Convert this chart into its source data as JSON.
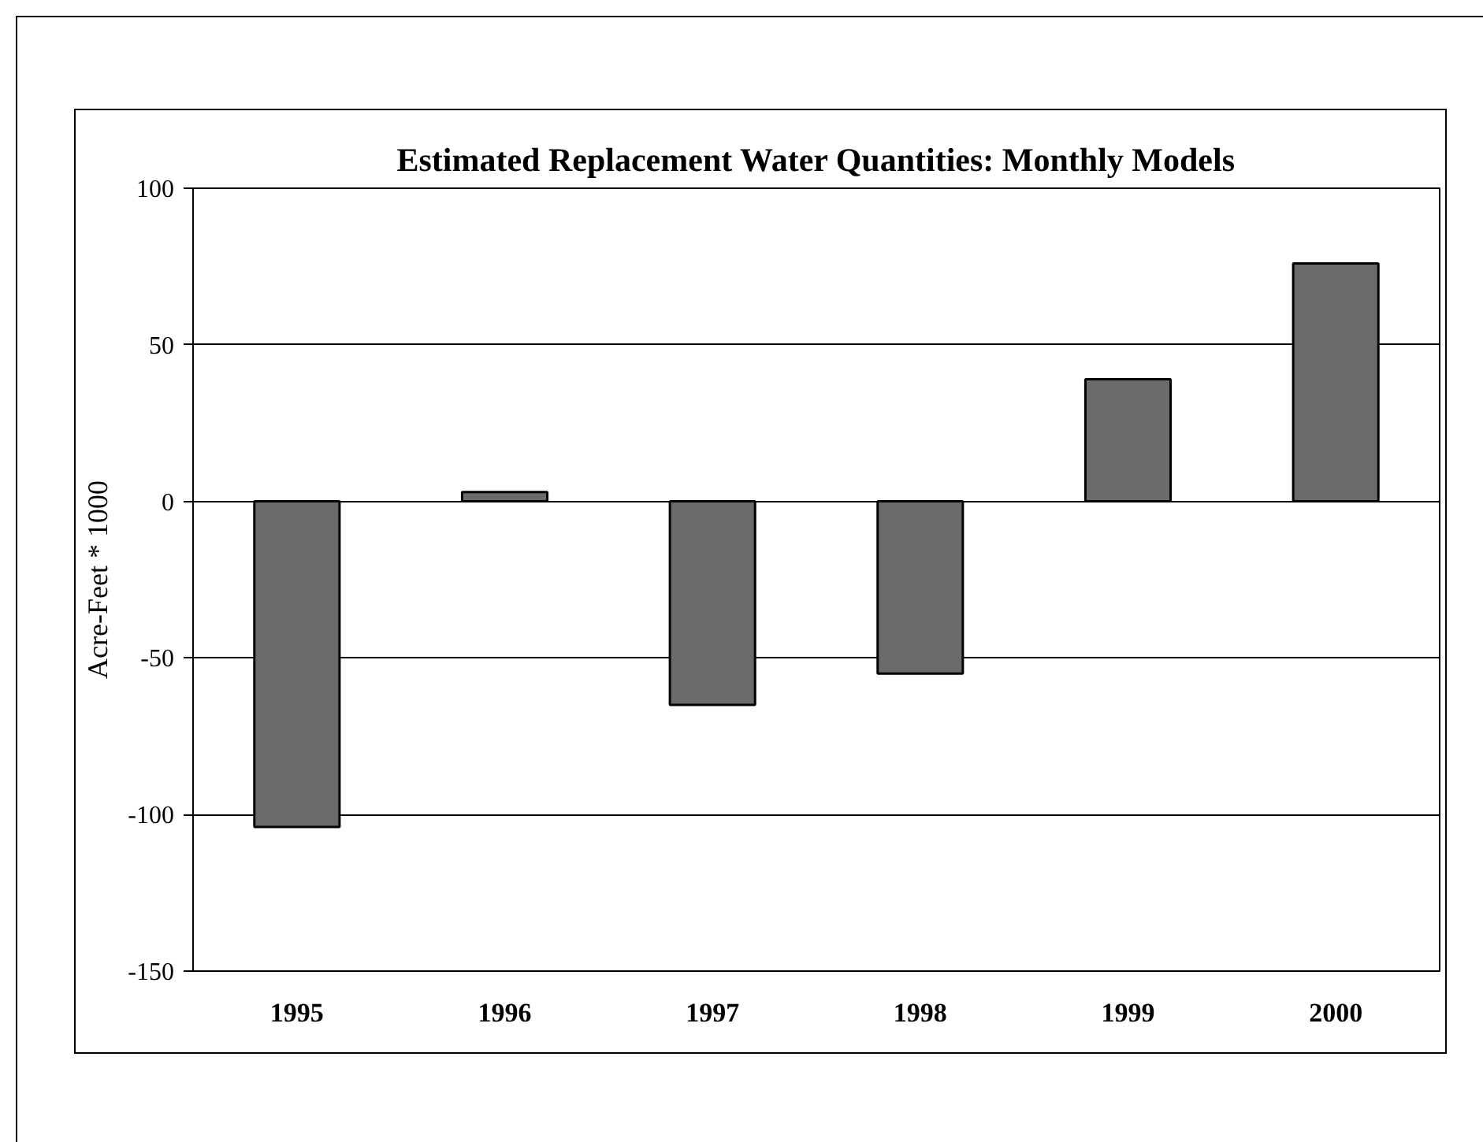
{
  "chart_data": {
    "type": "bar",
    "title": "Estimated Replacement Water Quantities: Monthly Models",
    "ylabel": "Acre-Feet * 1000",
    "categories": [
      "1995",
      "1996",
      "1997",
      "1998",
      "1999",
      "2000"
    ],
    "values": [
      -104,
      3,
      -65,
      -55,
      39,
      76
    ],
    "color": "#6b6b6b",
    "ylim": [
      -150,
      100
    ],
    "yticks": [
      -150,
      -100,
      -50,
      0,
      50,
      100
    ],
    "grid": "y"
  }
}
